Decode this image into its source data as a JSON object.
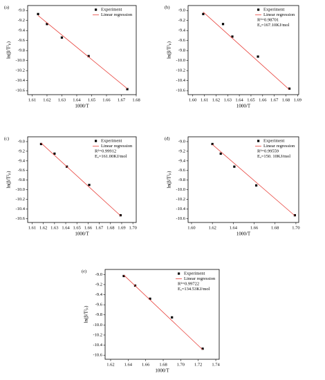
{
  "chart_data": [
    {
      "type": "scatter",
      "label": "(a)",
      "xlabel": "1000/T",
      "ylabel": "ln(β/T²ₚ)",
      "xlim": [
        1.607,
        1.68
      ],
      "ylim": [
        -10.68,
        -8.9
      ],
      "xticks": [
        1.61,
        1.62,
        1.63,
        1.64,
        1.65,
        1.66,
        1.67,
        1.68
      ],
      "yticks": [
        {
          "value": -9,
          "label": "-9.0"
        },
        -9.2,
        -9.4,
        -9.6,
        -9.8,
        {
          "value": -10,
          "label": "-10.0"
        },
        -10.2,
        -10.4,
        -10.6
      ],
      "series": [
        {
          "name": "Experiment",
          "mode": "markers",
          "color": "#000000",
          "x": [
            1.614,
            1.62,
            1.63,
            1.648,
            1.674
          ],
          "values": [
            -9.07,
            -9.27,
            -9.54,
            -9.91,
            -10.57
          ]
        },
        {
          "name": "Linear regression",
          "mode": "line",
          "color": "#e8403a",
          "x": [
            1.614,
            1.674
          ],
          "values": [
            -9.1,
            -10.56
          ]
        }
      ],
      "annotations": []
    },
    {
      "type": "scatter",
      "label": "(b)",
      "xlabel": "1000/T",
      "ylabel": "ln(β/T²ₚ)",
      "xlim": [
        1.596,
        1.691
      ],
      "ylim": [
        -10.68,
        -8.9
      ],
      "xticks": [
        {
          "value": 1.6,
          "label": "1.60"
        },
        1.61,
        1.62,
        1.63,
        1.64,
        1.65,
        1.66,
        1.67,
        1.68,
        1.69
      ],
      "yticks": [
        {
          "value": -9,
          "label": "-9.0"
        },
        -9.2,
        -9.4,
        -9.6,
        -9.8,
        {
          "value": -10,
          "label": "-10.0"
        },
        -10.2,
        -10.4,
        -10.6
      ],
      "series": [
        {
          "name": "Experiment",
          "mode": "markers",
          "color": "#000000",
          "x": [
            1.609,
            1.626,
            1.634,
            1.656,
            1.683
          ],
          "values": [
            -9.07,
            -9.27,
            -9.52,
            -9.92,
            -10.56
          ]
        },
        {
          "name": "Linear regression",
          "mode": "line",
          "color": "#e8403a",
          "x": [
            1.609,
            1.683
          ],
          "values": [
            -9.03,
            -10.58
          ]
        }
      ],
      "annotations": [
        "R²=0.98701",
        "Eₐ=167.10KJ/mol"
      ]
    },
    {
      "type": "scatter",
      "label": "(c)",
      "xlabel": "1000/T",
      "ylabel": "ln(β/T²ₚ)",
      "xlim": [
        1.606,
        1.703
      ],
      "ylim": [
        -10.68,
        -8.9
      ],
      "xticks": [
        1.61,
        1.62,
        1.63,
        1.64,
        1.65,
        1.66,
        1.67,
        1.68,
        1.69,
        {
          "value": 1.7,
          "label": "1.70"
        }
      ],
      "yticks": [
        {
          "value": -9,
          "label": "-9.0"
        },
        -9.2,
        -9.4,
        -9.6,
        -9.8,
        {
          "value": -10,
          "label": "-10.0"
        },
        -10.2,
        -10.4,
        -10.6
      ],
      "series": [
        {
          "name": "Experiment",
          "mode": "markers",
          "color": "#000000",
          "x": [
            1.618,
            1.63,
            1.641,
            1.661,
            1.689
          ],
          "values": [
            -9.05,
            -9.25,
            -9.52,
            -9.9,
            -10.53
          ]
        },
        {
          "name": "Linear regression",
          "mode": "line",
          "color": "#e8403a",
          "x": [
            1.618,
            1.689
          ],
          "values": [
            -9.03,
            -10.54
          ]
        }
      ],
      "annotations": [
        "R²=0.99912",
        "Eₐ=161.00KJ/mol"
      ]
    },
    {
      "type": "scatter",
      "label": "(d)",
      "xlabel": "1000/T",
      "ylabel": "ln(β/T²ₚ)",
      "xlim": [
        1.5967,
        1.7027
      ],
      "ylim": [
        -10.68,
        -8.9
      ],
      "xticks": [
        {
          "value": 1.6,
          "label": "1.60"
        },
        1.62,
        1.64,
        1.66,
        1.68,
        {
          "value": 1.7,
          "label": "1.70"
        }
      ],
      "yticks": [
        {
          "value": -9,
          "label": "-9.0"
        },
        -9.2,
        -9.4,
        -9.6,
        -9.8,
        {
          "value": -10,
          "label": "-10.0"
        },
        -10.2,
        -10.4,
        -10.6
      ],
      "series": [
        {
          "name": "Experiment",
          "mode": "markers",
          "color": "#000000",
          "x": [
            1.62,
            1.628,
            1.641,
            1.662,
            1.699
          ],
          "values": [
            -9.05,
            -9.25,
            -9.52,
            -9.91,
            -10.53
          ]
        },
        {
          "name": "Linear regression",
          "mode": "line",
          "color": "#e8403a",
          "x": [
            1.62,
            1.699
          ],
          "values": [
            -9.06,
            -10.54
          ]
        }
      ],
      "annotations": [
        "R²=0.99559",
        "Eₐ=150. 10KJ/mol"
      ]
    },
    {
      "type": "scatter",
      "label": "(e)",
      "xlabel": "1000/T",
      "ylabel": "ln(β/T²ₚ)",
      "xlim": [
        1.6137,
        1.7439
      ],
      "ylim": [
        -10.68,
        -8.9
      ],
      "xticks": [
        1.62,
        1.64,
        1.66,
        1.68,
        {
          "value": 1.7,
          "label": "1.70"
        },
        1.72,
        1.74
      ],
      "yticks": [
        {
          "value": -9,
          "label": "-9.0"
        },
        -9.2,
        -9.4,
        -9.6,
        -9.8,
        {
          "value": -10,
          "label": "-10.0"
        },
        -10.2,
        -10.4,
        -10.6
      ],
      "series": [
        {
          "name": "Experiment",
          "mode": "markers",
          "color": "#000000",
          "x": [
            1.635,
            1.648,
            1.665,
            1.69,
            1.725
          ],
          "values": [
            -9.03,
            -9.22,
            -9.48,
            -9.85,
            -10.47
          ]
        },
        {
          "name": "Linear regression",
          "mode": "line",
          "color": "#e8403a",
          "x": [
            1.635,
            1.725
          ],
          "values": [
            -9.01,
            -10.49
          ]
        }
      ],
      "annotations": [
        "R²=0.99722",
        "Eₐ=134.53KJ/mol"
      ]
    }
  ]
}
